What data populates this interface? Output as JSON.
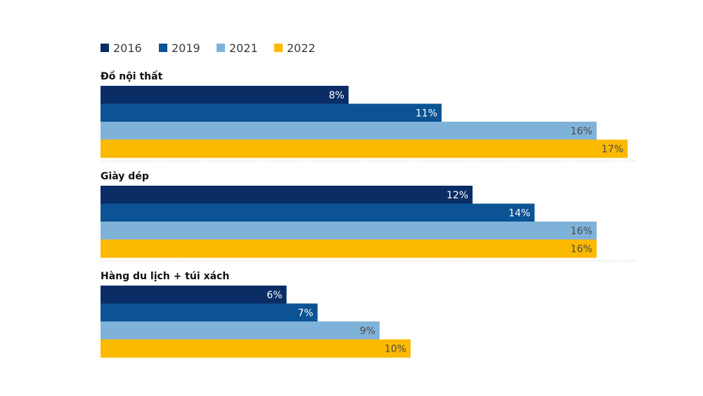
{
  "chart_data": {
    "type": "bar",
    "orientation": "horizontal",
    "title": "",
    "xlabel": "",
    "ylabel": "",
    "unit": "%",
    "categories": [
      "Đồ nội thất",
      "Giày dép",
      "Hàng du lịch + túi xách"
    ],
    "series": [
      {
        "name": "2016",
        "color": "#0a2d65",
        "label_color": "#ffffff",
        "values": [
          8,
          12,
          6
        ]
      },
      {
        "name": "2019",
        "color": "#0b5394",
        "label_color": "#ffffff",
        "values": [
          11,
          14,
          7
        ]
      },
      {
        "name": "2021",
        "color": "#7fb2d8",
        "label_color": "#4a4a4a",
        "values": [
          16,
          16,
          9
        ]
      },
      {
        "name": "2022",
        "color": "#fbb900",
        "label_color": "#4a4a4a",
        "values": [
          17,
          16,
          10
        ]
      }
    ],
    "value_labels": [
      [
        "8%",
        "12%",
        "6%"
      ],
      [
        "11%",
        "14%",
        "7%"
      ],
      [
        "16%",
        "16%",
        "9%"
      ],
      [
        "17%",
        "16%",
        "10%"
      ]
    ],
    "xlim": [
      0,
      17.3
    ],
    "grid": false,
    "legend_position": "top-left"
  }
}
